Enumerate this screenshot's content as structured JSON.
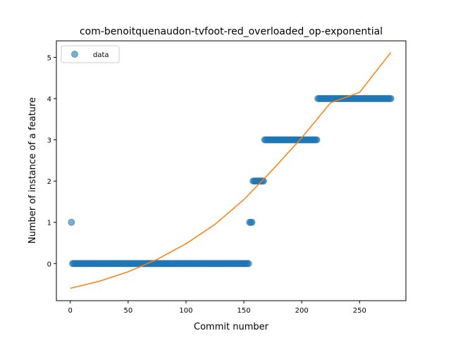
{
  "chart_data": {
    "type": "scatter",
    "title": "com-benoitquenaudon-tvfoot-red_overloaded_op-exponential",
    "xlabel": "Commit number",
    "ylabel": "Number of instance of a feature",
    "xlim": [
      -12,
      290
    ],
    "ylim": [
      -0.9,
      5.4
    ],
    "xticks": [
      0,
      50,
      100,
      150,
      200,
      250
    ],
    "yticks": [
      0,
      1,
      2,
      3,
      4,
      5
    ],
    "grid": false,
    "legend": {
      "placement": "top-left",
      "entries": [
        "data"
      ]
    },
    "colors": {
      "data": "#1f77b4",
      "fit": "#ff7f0e"
    },
    "series": [
      {
        "name": "data",
        "type": "scatter",
        "points": [
          {
            "x": 1,
            "y": 1
          },
          {
            "x_range": [
              2,
              154
            ],
            "y": 0
          },
          {
            "x_range": [
              155,
              157
            ],
            "y": 1
          },
          {
            "x_range": [
              158,
              167
            ],
            "y": 2
          },
          {
            "x_range": [
              168,
              213
            ],
            "y": 3
          },
          {
            "x_range": [
              214,
              277
            ],
            "y": 4
          }
        ]
      },
      {
        "type": "line",
        "model": "exponential",
        "x": [
          0,
          25,
          50,
          75,
          100,
          125,
          150,
          175,
          200,
          225,
          250,
          277
        ],
        "y": [
          -0.6,
          -0.43,
          -0.2,
          0.1,
          0.48,
          0.95,
          1.55,
          2.28,
          3.05,
          3.9,
          4.15,
          5.12
        ]
      }
    ]
  }
}
